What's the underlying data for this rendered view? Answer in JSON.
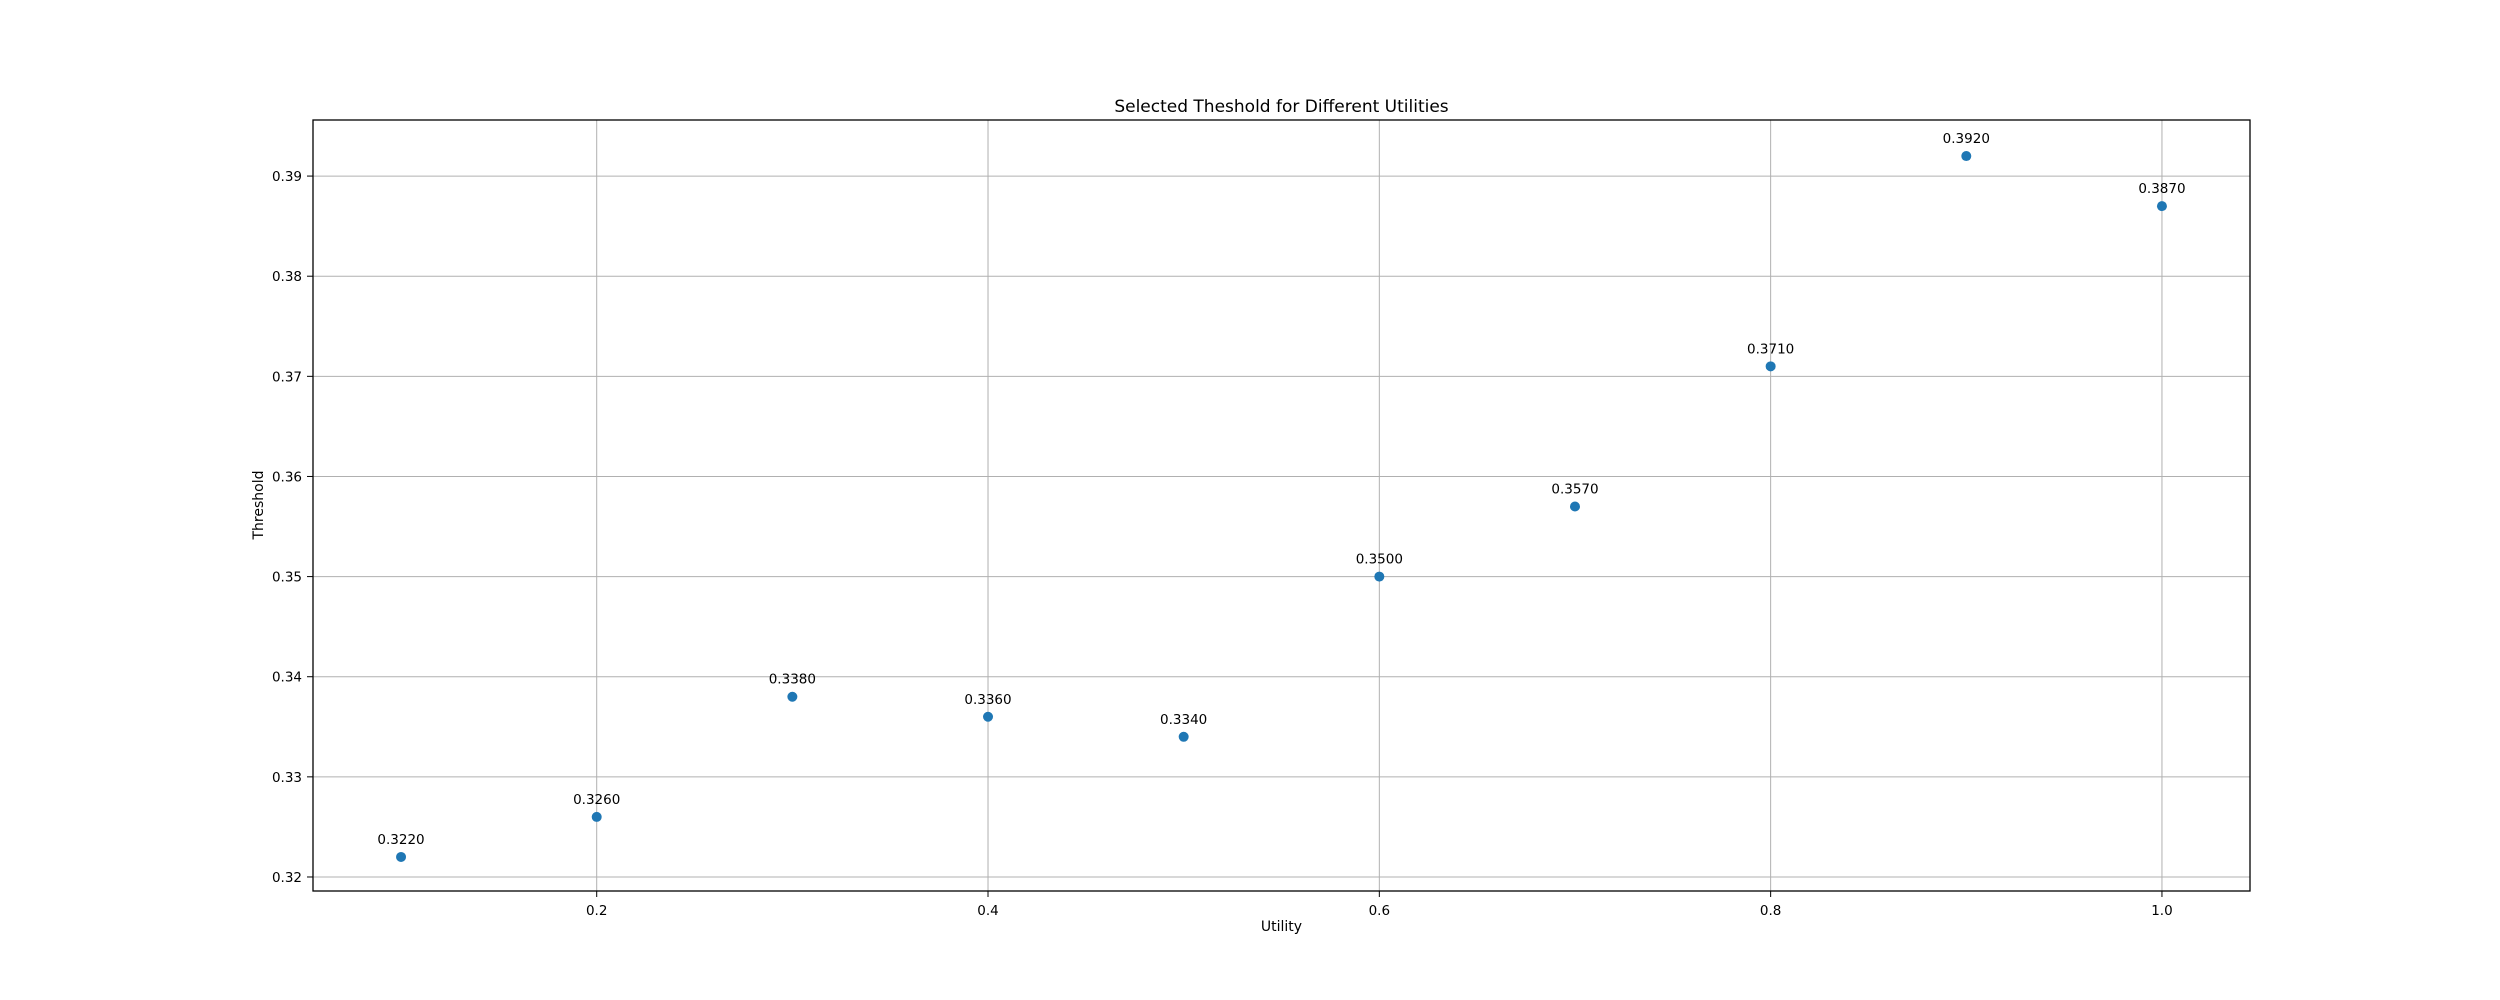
{
  "chart_data": {
    "type": "scatter",
    "title": "Selected Theshold for Different Utilities",
    "xlabel": "Utility",
    "ylabel": "Threshold",
    "xlim": [
      0.055,
      1.045
    ],
    "ylim": [
      0.3186,
      0.3956
    ],
    "xticks": [
      0.2,
      0.4,
      0.6,
      0.8,
      1.0
    ],
    "xtick_labels": [
      "0.2",
      "0.4",
      "0.6",
      "0.8",
      "1.0"
    ],
    "yticks": [
      0.32,
      0.33,
      0.34,
      0.35,
      0.36,
      0.37,
      0.38,
      0.39
    ],
    "ytick_labels": [
      "0.32",
      "0.33",
      "0.34",
      "0.35",
      "0.36",
      "0.37",
      "0.38",
      "0.39"
    ],
    "grid": true,
    "marker_color": "#1f77b4",
    "points": [
      {
        "x": 0.1,
        "y": 0.322,
        "label": "0.3220"
      },
      {
        "x": 0.2,
        "y": 0.326,
        "label": "0.3260"
      },
      {
        "x": 0.3,
        "y": 0.338,
        "label": "0.3380"
      },
      {
        "x": 0.4,
        "y": 0.336,
        "label": "0.3360"
      },
      {
        "x": 0.5,
        "y": 0.334,
        "label": "0.3340"
      },
      {
        "x": 0.6,
        "y": 0.35,
        "label": "0.3500"
      },
      {
        "x": 0.7,
        "y": 0.357,
        "label": "0.3570"
      },
      {
        "x": 0.8,
        "y": 0.371,
        "label": "0.3710"
      },
      {
        "x": 0.9,
        "y": 0.392,
        "label": "0.3920"
      },
      {
        "x": 1.0,
        "y": 0.387,
        "label": "0.3870"
      }
    ]
  }
}
